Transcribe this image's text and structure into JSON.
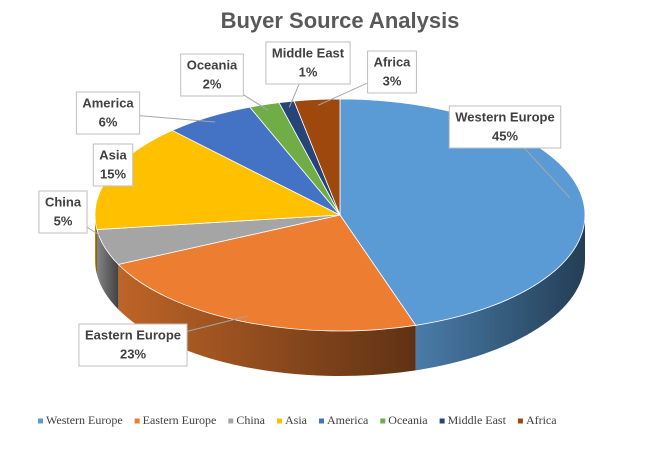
{
  "chart_data": {
    "type": "pie3d",
    "title": "Buyer Source Analysis",
    "categories": [
      "Western Europe",
      "Eastern Europe",
      "China",
      "Asia",
      "America",
      "Oceania",
      "Middle East",
      "Africa"
    ],
    "values": [
      45,
      23,
      5,
      15,
      6,
      2,
      1,
      3
    ],
    "value_labels": [
      "45%",
      "23%",
      "5%",
      "15%",
      "6%",
      "2%",
      "1%",
      "3%"
    ],
    "colors": [
      "#5b9bd5",
      "#ed7d31",
      "#a5a5a5",
      "#ffc000",
      "#4472c4",
      "#70ad47",
      "#264478",
      "#9e480e"
    ],
    "legend": "bottom"
  }
}
